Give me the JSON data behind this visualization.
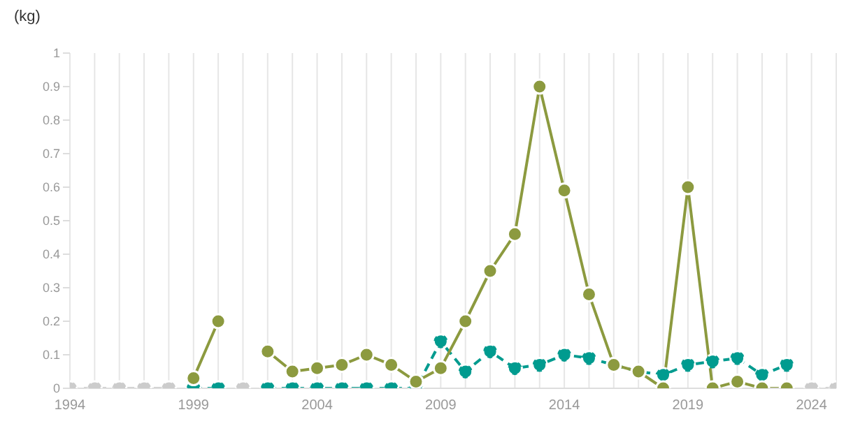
{
  "chart_data": {
    "type": "line",
    "ylabel": "(kg)",
    "x": [
      1994,
      1995,
      1996,
      1997,
      1998,
      1999,
      2000,
      2001,
      2002,
      2003,
      2004,
      2005,
      2006,
      2007,
      2008,
      2009,
      2010,
      2011,
      2012,
      2013,
      2014,
      2015,
      2016,
      2017,
      2018,
      2019,
      2020,
      2021,
      2022,
      2023,
      2024,
      2025
    ],
    "series": [
      {
        "color": "#cccccc",
        "line_style": "dashed",
        "values": [
          0,
          0,
          0,
          0,
          0,
          null,
          null,
          0,
          null,
          null,
          null,
          null,
          null,
          null,
          null,
          null,
          null,
          null,
          null,
          null,
          null,
          null,
          null,
          null,
          null,
          null,
          null,
          null,
          null,
          null,
          0,
          0
        ]
      },
      {
        "color": "#009b8f",
        "line_style": "dashed",
        "values": [
          null,
          null,
          null,
          null,
          null,
          0,
          0,
          null,
          0,
          0,
          0,
          0,
          0,
          0,
          0,
          0.14,
          0.05,
          0.11,
          0.06,
          0.07,
          0.1,
          0.09,
          0.07,
          0.05,
          0.04,
          0.07,
          0.08,
          0.09,
          0.04,
          0.07,
          null,
          null
        ]
      },
      {
        "color": "#8c9a3f",
        "line_style": "solid",
        "values": [
          null,
          null,
          null,
          null,
          null,
          0.03,
          0.2,
          null,
          0.11,
          0.05,
          0.06,
          0.07,
          0.1,
          0.07,
          0.02,
          0.06,
          0.2,
          0.35,
          0.46,
          0.9,
          0.59,
          0.28,
          0.07,
          0.05,
          0,
          0.6,
          0,
          0.02,
          0,
          0,
          null,
          null
        ]
      }
    ],
    "xlim": [
      1994,
      2025
    ],
    "xticks": [
      1994,
      {
        "value": 1995,
        "label": null
      },
      {
        "value": 1996,
        "label": null
      },
      {
        "value": 1997,
        "label": null
      },
      {
        "value": 1998,
        "label": null
      },
      1999,
      {
        "value": 2000,
        "label": null
      },
      {
        "value": 2001,
        "label": null
      },
      {
        "value": 2002,
        "label": null
      },
      {
        "value": 2003,
        "label": null
      },
      2004,
      {
        "value": 2005,
        "label": null
      },
      {
        "value": 2006,
        "label": null
      },
      {
        "value": 2007,
        "label": null
      },
      {
        "value": 2008,
        "label": null
      },
      2009,
      {
        "value": 2010,
        "label": null
      },
      {
        "value": 2011,
        "label": null
      },
      {
        "value": 2012,
        "label": null
      },
      {
        "value": 2013,
        "label": null
      },
      2014,
      {
        "value": 2015,
        "label": null
      },
      {
        "value": 2016,
        "label": null
      },
      {
        "value": 2017,
        "label": null
      },
      {
        "value": 2018,
        "label": null
      },
      2019,
      {
        "value": 2020,
        "label": null
      },
      {
        "value": 2021,
        "label": null
      },
      {
        "value": 2022,
        "label": null
      },
      {
        "value": 2023,
        "label": null
      },
      2024,
      {
        "value": 2025,
        "label": null
      }
    ],
    "ylim": [
      0,
      1
    ],
    "yticks": [
      0,
      0.1,
      0.2,
      0.3,
      0.4,
      0.5,
      0.6,
      0.7,
      0.8,
      0.9,
      1
    ],
    "grid": "x",
    "marker": "circle",
    "legend": false
  }
}
